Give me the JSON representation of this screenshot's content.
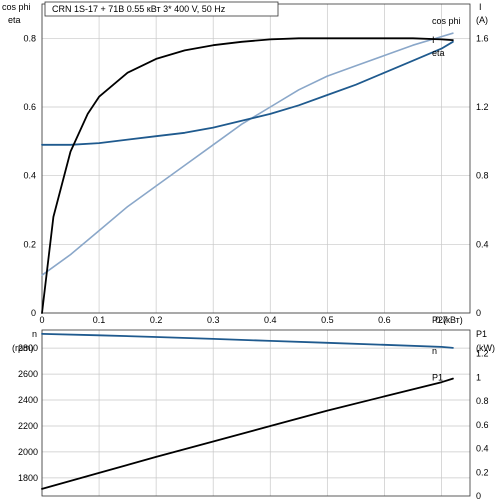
{
  "chart_data": [
    {
      "type": "line",
      "title": "CRN 1S-17 + 71B    0.55 кВт    3* 400 V, 50 Hz",
      "xlabel": "P2(кВт)",
      "xlim": [
        0,
        0.75
      ],
      "xticks": [
        "0",
        "0.1",
        "0.2",
        "0.3",
        "0.4",
        "0.5",
        "0.6",
        "0.7"
      ],
      "ylabel_left": [
        "cos phi",
        "eta"
      ],
      "ylim_left": [
        0,
        0.9
      ],
      "yticks_left": [
        "0",
        "0.2",
        "0.4",
        "0.6",
        "0.8"
      ],
      "ylabel_right": [
        "I",
        "(A)"
      ],
      "ylim_right": [
        0,
        1.8
      ],
      "yticks_right": [
        "0",
        "0.4",
        "0.8",
        "1.2",
        "1.6"
      ],
      "grid": true,
      "series": [
        {
          "name": "cos phi",
          "axis": "left",
          "color": "#8aa7c9",
          "x": [
            0,
            0.05,
            0.1,
            0.15,
            0.2,
            0.25,
            0.3,
            0.35,
            0.4,
            0.45,
            0.5,
            0.55,
            0.6,
            0.65,
            0.7,
            0.72
          ],
          "y": [
            0.11,
            0.17,
            0.24,
            0.31,
            0.37,
            0.43,
            0.49,
            0.55,
            0.6,
            0.65,
            0.69,
            0.72,
            0.75,
            0.78,
            0.805,
            0.815
          ]
        },
        {
          "name": "I",
          "axis": "right",
          "color": "#1f5a8e",
          "x": [
            0,
            0.05,
            0.1,
            0.15,
            0.2,
            0.25,
            0.3,
            0.35,
            0.4,
            0.45,
            0.5,
            0.55,
            0.6,
            0.65,
            0.7,
            0.72
          ],
          "y": [
            0.98,
            0.98,
            0.99,
            1.01,
            1.03,
            1.05,
            1.08,
            1.12,
            1.16,
            1.21,
            1.27,
            1.33,
            1.4,
            1.47,
            1.54,
            1.58
          ]
        },
        {
          "name": "eta",
          "axis": "left",
          "color": "#000000",
          "x": [
            0,
            0.02,
            0.05,
            0.08,
            0.1,
            0.15,
            0.2,
            0.25,
            0.3,
            0.35,
            0.4,
            0.45,
            0.5,
            0.55,
            0.6,
            0.65,
            0.7,
            0.72
          ],
          "y": [
            0,
            0.28,
            0.47,
            0.58,
            0.63,
            0.7,
            0.74,
            0.765,
            0.78,
            0.79,
            0.797,
            0.8,
            0.8,
            0.8,
            0.8,
            0.8,
            0.797,
            0.795
          ]
        }
      ]
    },
    {
      "type": "line",
      "ylabel_left": [
        "n",
        "(rpm)"
      ],
      "ylim_left": [
        1660,
        2940
      ],
      "yticks_left": [
        "1800",
        "2000",
        "2200",
        "2400",
        "2600",
        "2800"
      ],
      "ylabel_right": [
        "P1",
        "(kW)"
      ],
      "ylim_right": [
        0,
        1.4
      ],
      "yticks_right": [
        "0",
        "0.2",
        "0.4",
        "0.6",
        "0.8",
        "1",
        "1.2"
      ],
      "grid": true,
      "series": [
        {
          "name": "n",
          "axis": "left",
          "color": "#1f5a8e",
          "x": [
            0,
            0.1,
            0.2,
            0.3,
            0.4,
            0.5,
            0.6,
            0.7,
            0.72
          ],
          "y": [
            2910,
            2899,
            2886,
            2871,
            2856,
            2841,
            2826,
            2810,
            2802
          ]
        },
        {
          "name": "P1",
          "axis": "right",
          "color": "#000000",
          "x": [
            0,
            0.1,
            0.2,
            0.3,
            0.4,
            0.5,
            0.6,
            0.7,
            0.72
          ],
          "y": [
            0.06,
            0.195,
            0.33,
            0.46,
            0.59,
            0.72,
            0.84,
            0.96,
            0.99
          ]
        }
      ]
    }
  ]
}
